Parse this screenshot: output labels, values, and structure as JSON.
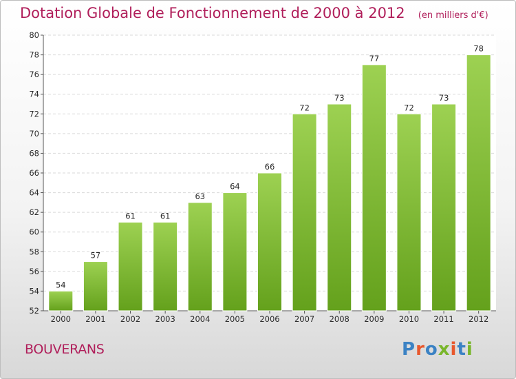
{
  "header": {
    "title": "Dotation Globale de Fonctionnement de 2000 à 2012",
    "subtitle": "(en milliers d'€)"
  },
  "footer": {
    "commune": "BOUVERANS",
    "logo_text": "Proxiti"
  },
  "colors": {
    "title": "#b01e5a",
    "bar_top": "#9dd152",
    "bar_bottom": "#64a11c",
    "logo_letters": [
      "#3b82c4",
      "#e8582d",
      "#3b82c4",
      "#79b62b",
      "#e8582d",
      "#3b82c4",
      "#79b62b"
    ]
  },
  "chart_data": {
    "type": "bar",
    "categories": [
      "2000",
      "2001",
      "2002",
      "2003",
      "2004",
      "2005",
      "2006",
      "2007",
      "2008",
      "2009",
      "2010",
      "2011",
      "2012"
    ],
    "values": [
      54,
      57,
      61,
      61,
      63,
      64,
      66,
      72,
      73,
      77,
      72,
      73,
      78
    ],
    "title": "Dotation Globale de Fonctionnement de 2000 à 2012",
    "subtitle": "(en milliers d'€)",
    "xlabel": "",
    "ylabel": "",
    "ylim": [
      52,
      80
    ],
    "yticks": [
      52,
      54,
      56,
      58,
      60,
      62,
      64,
      66,
      68,
      70,
      72,
      74,
      76,
      78,
      80
    ],
    "grid": true,
    "legend": "none"
  }
}
